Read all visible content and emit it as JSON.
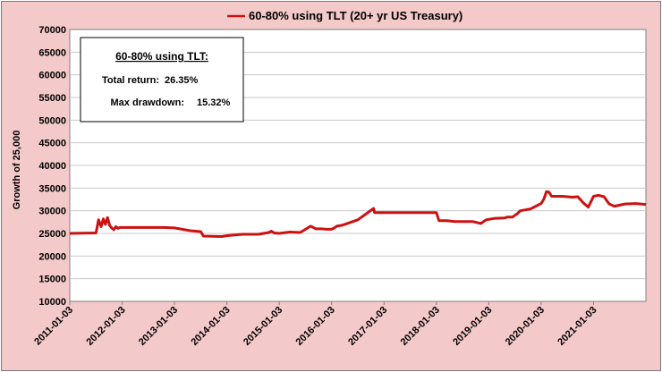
{
  "chart_data": {
    "type": "line",
    "legend": "60-80% using TLT  (20+ yr US Treasury)",
    "ylabel": "Growth of 25,000",
    "ylim": [
      10000,
      70000
    ],
    "yticks": [
      10000,
      15000,
      20000,
      25000,
      30000,
      35000,
      40000,
      45000,
      50000,
      55000,
      60000,
      65000,
      70000
    ],
    "xtick_labels": [
      "2011-01-03",
      "2012-01-03",
      "2013-01-03",
      "2014-01-03",
      "2015-01-03",
      "2016-01-03",
      "2017-01-03",
      "2018-01-03",
      "2019-01-03",
      "2020-01-03",
      "2021-01-03"
    ],
    "x_range": [
      2011.0,
      2022.0
    ],
    "series": [
      {
        "name": "60-80% using TLT",
        "color": "#cc1111",
        "x": [
          2011.0,
          2011.5,
          2011.55,
          2011.6,
          2011.64,
          2011.68,
          2011.72,
          2011.76,
          2011.8,
          2011.84,
          2011.88,
          2011.92,
          2011.96,
          2012.0,
          2012.3,
          2012.8,
          2013.0,
          2013.3,
          2013.5,
          2013.55,
          2013.9,
          2014.0,
          2014.3,
          2014.6,
          2014.8,
          2014.85,
          2014.9,
          2015.0,
          2015.2,
          2015.4,
          2015.6,
          2015.7,
          2015.8,
          2015.9,
          2015.95,
          2016.0,
          2016.05,
          2016.1,
          2016.2,
          2016.5,
          2016.8,
          2016.82,
          2017.0,
          2017.4,
          2017.8,
          2018.0,
          2018.05,
          2018.1,
          2018.2,
          2018.35,
          2018.5,
          2018.7,
          2018.85,
          2018.95,
          2019.1,
          2019.3,
          2019.35,
          2019.45,
          2019.55,
          2019.6,
          2019.7,
          2019.8,
          2020.0,
          2020.05,
          2020.1,
          2020.15,
          2020.2,
          2020.3,
          2020.4,
          2020.5,
          2020.6,
          2020.7,
          2020.8,
          2020.9,
          2021.0,
          2021.1,
          2021.2,
          2021.3,
          2021.4,
          2021.6,
          2021.8,
          2022.0
        ],
        "values": [
          25000,
          25100,
          28000,
          26500,
          28200,
          27000,
          28500,
          26800,
          26200,
          25800,
          26500,
          26100,
          26300,
          26300,
          26300,
          26300,
          26200,
          25600,
          25400,
          24400,
          24300,
          24500,
          24800,
          24800,
          25200,
          25500,
          25100,
          25000,
          25300,
          25200,
          26600,
          26000,
          26000,
          25900,
          25900,
          25900,
          26200,
          26600,
          26800,
          28000,
          30500,
          29600,
          29600,
          29600,
          29600,
          29600,
          27800,
          27800,
          27800,
          27600,
          27600,
          27600,
          27200,
          28000,
          28300,
          28400,
          28600,
          28600,
          29400,
          30000,
          30200,
          30400,
          31600,
          32500,
          34200,
          34100,
          33200,
          33200,
          33200,
          33100,
          33000,
          33100,
          31800,
          30800,
          33200,
          33400,
          33100,
          31500,
          31000,
          31500,
          31600,
          31400
        ]
      }
    ],
    "annotation": {
      "title": "60-80% using TLT:",
      "total_return_label": "Total return:",
      "total_return_value": "26.35%",
      "max_drawdown_label": "Max drawdown:",
      "max_drawdown_value": "15.32%",
      "max_drawdown_color": "#cc1111"
    }
  }
}
